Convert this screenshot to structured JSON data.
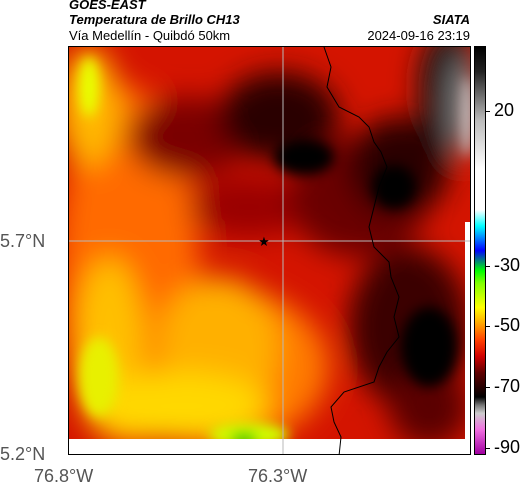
{
  "header": {
    "satellite": "GOES-EAST",
    "product": "Temperatura de Brillo CH13",
    "organization": "SIATA",
    "subtitle": "Vía Medellín - Quibdó 50km",
    "timestamp": "2024-09-16 23:19"
  },
  "map": {
    "lat_ticks": [
      "5.7°N",
      "5.2°N"
    ],
    "lon_ticks": [
      "76.8°W",
      "76.3°W"
    ],
    "marker_icon": "star-icon"
  },
  "colorbar": {
    "ticks": [
      "20",
      "-30",
      "-50",
      "-70",
      "-90"
    ],
    "palette": [
      "#f070e0",
      "#909090",
      "#000000",
      "#8b0000",
      "#ff0000",
      "#ffa500",
      "#ffff00",
      "#00ff00",
      "#0000ff",
      "#00ffff",
      "#ffffff",
      "#000000"
    ]
  }
}
